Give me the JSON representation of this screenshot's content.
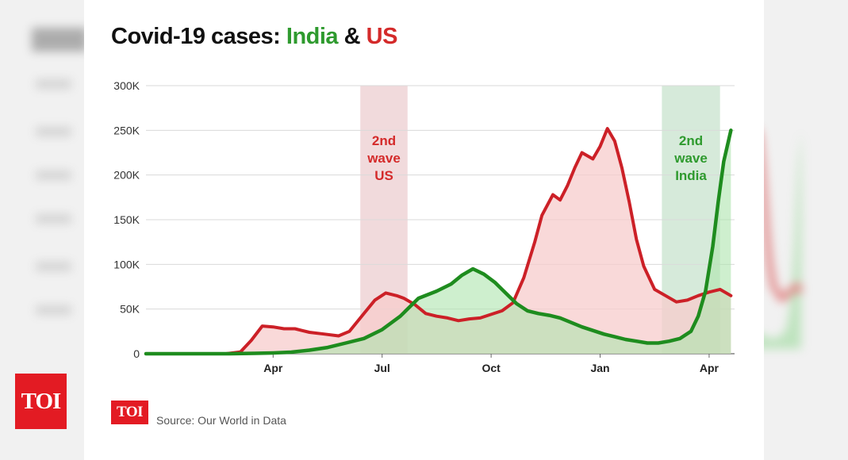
{
  "title": {
    "prefix": "Covid-19 cases: ",
    "india": "India",
    "amp": " & ",
    "us": "US"
  },
  "source": "Source: Our World in Data",
  "logo_text": "TOI",
  "colors": {
    "india": "#1e8c1e",
    "us": "#cc2027",
    "india_fill": "#aee5ae",
    "us_fill": "#f7cccc",
    "us_band": "#eed3d6",
    "india_band": "#cfe6d4"
  },
  "chart_data": {
    "type": "area",
    "title": "Covid-19 cases: India & US",
    "xlabel": "",
    "ylabel": "",
    "x_unit": "months since Jan 2020",
    "xlim": [
      -0.5,
      15.7
    ],
    "ylim": [
      0,
      300000
    ],
    "yticks": [
      0,
      50000,
      100000,
      150000,
      200000,
      250000,
      300000
    ],
    "ytick_labels": [
      "0",
      "50K",
      "100K",
      "150K",
      "200K",
      "250K",
      "300K"
    ],
    "xticks": [
      3,
      6,
      9,
      12,
      15
    ],
    "xtick_labels": [
      "Apr",
      "Jul",
      "Oct",
      "Jan",
      "Apr"
    ],
    "grid": true,
    "highlight_bands": [
      {
        "name": "us-second-wave",
        "x0": 5.4,
        "x1": 6.7,
        "label": [
          "2nd",
          "wave",
          "US"
        ]
      },
      {
        "name": "india-second-wave",
        "x0": 13.7,
        "x1": 15.3,
        "label": [
          "2nd",
          "wave",
          "India"
        ]
      }
    ],
    "series": [
      {
        "name": "US",
        "x": [
          -0.5,
          1.2,
          1.7,
          2.1,
          2.4,
          2.7,
          3.0,
          3.3,
          3.6,
          4.0,
          4.4,
          4.8,
          5.1,
          5.5,
          5.8,
          6.1,
          6.4,
          6.6,
          6.9,
          7.2,
          7.5,
          7.8,
          8.1,
          8.4,
          8.7,
          9.0,
          9.3,
          9.6,
          9.9,
          10.2,
          10.4,
          10.7,
          10.9,
          11.1,
          11.3,
          11.5,
          11.8,
          12.0,
          12.2,
          12.4,
          12.6,
          12.8,
          13.0,
          13.2,
          13.5,
          13.8,
          14.1,
          14.4,
          14.7,
          15.0,
          15.3,
          15.6
        ],
        "values": [
          0,
          0,
          0,
          2000,
          15000,
          31000,
          30000,
          28000,
          28000,
          24000,
          22000,
          20000,
          25000,
          45000,
          60000,
          68000,
          65000,
          62000,
          55000,
          45000,
          42000,
          40000,
          37000,
          39000,
          40000,
          44000,
          48000,
          57000,
          85000,
          125000,
          155000,
          178000,
          172000,
          188000,
          208000,
          225000,
          218000,
          232000,
          252000,
          238000,
          208000,
          170000,
          128000,
          98000,
          72000,
          65000,
          58000,
          60000,
          65000,
          69000,
          72000,
          65000
        ]
      },
      {
        "name": "India",
        "x": [
          -0.5,
          1.8,
          2.5,
          3.0,
          3.5,
          4.0,
          4.5,
          5.0,
          5.5,
          6.0,
          6.5,
          7.0,
          7.5,
          7.9,
          8.2,
          8.5,
          8.8,
          9.1,
          9.4,
          9.7,
          10.0,
          10.3,
          10.6,
          10.9,
          11.2,
          11.5,
          11.8,
          12.1,
          12.4,
          12.7,
          13.0,
          13.3,
          13.6,
          13.9,
          14.2,
          14.5,
          14.7,
          14.9,
          15.1,
          15.25,
          15.4,
          15.6
        ],
        "values": [
          0,
          0,
          400,
          900,
          1800,
          4000,
          7000,
          12000,
          17000,
          27000,
          42000,
          62000,
          70000,
          78000,
          88000,
          95000,
          89000,
          80000,
          68000,
          56000,
          48000,
          45000,
          43000,
          40000,
          35000,
          30000,
          26000,
          22000,
          19000,
          16000,
          14000,
          12000,
          12000,
          14000,
          17000,
          25000,
          42000,
          70000,
          120000,
          170000,
          215000,
          250000
        ]
      }
    ],
    "annotations": [
      {
        "text": "2nd wave US",
        "near": "us-second-wave"
      },
      {
        "text": "2nd wave India",
        "near": "india-second-wave"
      }
    ]
  }
}
